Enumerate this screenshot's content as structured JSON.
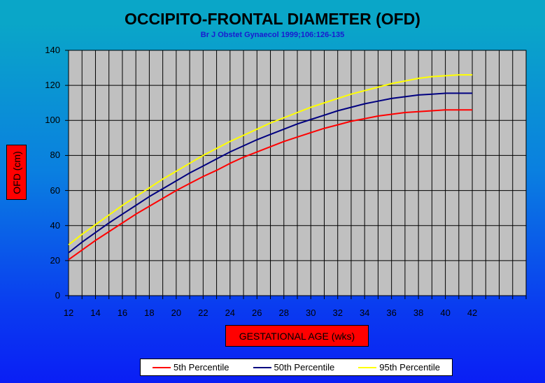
{
  "chart_data": {
    "type": "line",
    "title": "OCCIPITO-FRONTAL DIAMETER (OFD)",
    "subtitle": "Br J Obstet Gynaecol 1999;106:126-135",
    "xlabel": "GESTATIONAL AGE (wks)",
    "ylabel": "OFD (cm)",
    "xlim": [
      12,
      46
    ],
    "ylim": [
      0,
      140
    ],
    "x_ticks": [
      12,
      14,
      16,
      18,
      20,
      22,
      24,
      26,
      28,
      30,
      32,
      34,
      36,
      38,
      40,
      42
    ],
    "y_ticks": [
      0,
      20,
      40,
      60,
      80,
      100,
      120,
      140
    ],
    "grid": true,
    "legend_position": "bottom",
    "x": [
      12,
      13,
      14,
      15,
      16,
      17,
      18,
      19,
      20,
      21,
      22,
      23,
      24,
      25,
      26,
      27,
      28,
      29,
      30,
      31,
      32,
      33,
      34,
      35,
      36,
      37,
      38,
      39,
      40,
      41,
      42
    ],
    "series": [
      {
        "name": "5th Percentile",
        "color": "#ff0000",
        "values": [
          20.5,
          26,
          31.5,
          36.5,
          41.5,
          46.5,
          51,
          55.5,
          60,
          64,
          68,
          71.5,
          75.5,
          79,
          82,
          85,
          88,
          90.5,
          93,
          95.5,
          97.5,
          99.5,
          101,
          102.5,
          103.5,
          104.5,
          105,
          105.5,
          106,
          106,
          106
        ]
      },
      {
        "name": "50th Percentile",
        "color": "#000080",
        "values": [
          24.5,
          30.5,
          36,
          41.5,
          46.5,
          51.5,
          56.5,
          61,
          65.5,
          70,
          74,
          78,
          82,
          85.5,
          89,
          92,
          95,
          98,
          100.5,
          103,
          105.5,
          107.5,
          109.5,
          111,
          112.5,
          113.5,
          114.5,
          115,
          115.5,
          115.5,
          115.5
        ]
      },
      {
        "name": "95th Percentile",
        "color": "#ffff00",
        "values": [
          29,
          35,
          40.5,
          46,
          51.5,
          56.5,
          61.5,
          66.5,
          71,
          75.5,
          80,
          84,
          88,
          91.5,
          95,
          98.5,
          101.5,
          104.5,
          107.5,
          110,
          112.5,
          115,
          117,
          119,
          121,
          122.5,
          124,
          125,
          125.5,
          126,
          126
        ]
      }
    ]
  },
  "colors": {
    "plot_background": "#c0c0c0",
    "grid": "#000000",
    "label_box": "#ff0000",
    "subtitle": "#1a1ad0"
  }
}
